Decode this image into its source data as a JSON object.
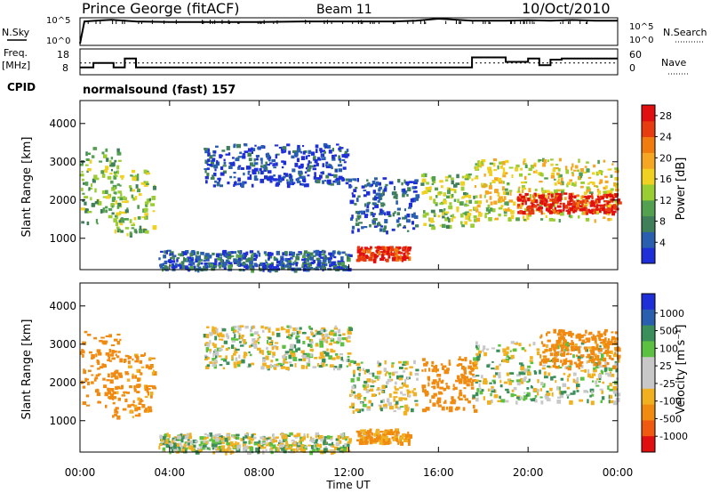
{
  "header": {
    "station": "Prince George (fitACF)",
    "beam": "Beam 11",
    "date": "10/Oct/2010"
  },
  "nsky_panel": {
    "left_label": "N.Sky",
    "right_label": "N.Search",
    "left_ticks": [
      "10^5",
      "10^0"
    ],
    "right_ticks": [
      "10^5",
      "10^0"
    ]
  },
  "freq_panel": {
    "left_label_1": "Freq.",
    "left_label_2": "[MHz]",
    "right_label": "Nave",
    "left_ticks": [
      "18",
      "8"
    ],
    "right_ticks": [
      "60",
      "0"
    ]
  },
  "cpid": {
    "label": "CPID",
    "text": "normalsound (fast) 157"
  },
  "x_axis": {
    "tick_labels": [
      "00:00",
      "04:00",
      "08:00",
      "12:00",
      "16:00",
      "20:00",
      "00:00"
    ],
    "title": "Time UT"
  },
  "colors": {
    "power_scale": [
      "#1f2fd8",
      "#2a5fb0",
      "#3f7f5a",
      "#52a050",
      "#9acd32",
      "#f0d020",
      "#f5a623",
      "#f07c10",
      "#e63c10",
      "#e01010"
    ],
    "velocity_scale": [
      "#1f2fd8",
      "#2a5fb0",
      "#3a8f5a",
      "#5cc040",
      "#c8c8c8",
      "#c8c8c8",
      "#f0b020",
      "#f08a10",
      "#f05a10",
      "#e01010"
    ]
  },
  "chart_data": [
    {
      "type": "line",
      "panel": "N.Sky / N.Search",
      "x": [
        0,
        0.2,
        0.7,
        1.4,
        2.5,
        4,
        6,
        8,
        10,
        12,
        14,
        15,
        16,
        17,
        17.5,
        19,
        20,
        21,
        22,
        23,
        24
      ],
      "series": [
        {
          "name": "N.Sky",
          "values": [
            1,
            40000,
            60000,
            90000,
            40000,
            30000,
            30000,
            30000,
            40000,
            40000,
            40000,
            60000,
            150000,
            80000,
            60000,
            60000,
            70000,
            60000,
            80000,
            60000,
            60000
          ]
        },
        {
          "name": "N.Search",
          "values": [
            1,
            20000,
            30000,
            40000,
            20000,
            15000,
            15000,
            15000,
            20000,
            20000,
            20000,
            30000,
            60000,
            40000,
            30000,
            30000,
            30000,
            30000,
            40000,
            30000,
            30000
          ]
        }
      ],
      "ylim": [
        1,
        100000
      ],
      "log_scale": true
    },
    {
      "type": "line",
      "panel": "Freq. / Nave",
      "x": [
        0,
        0.3,
        0.6,
        0.6,
        1.5,
        1.5,
        2.0,
        2.0,
        2.5,
        2.5,
        17.5,
        17.5,
        19.0,
        19.0,
        20.0,
        20.0,
        20.5,
        20.5,
        21.0,
        21.0,
        21.5,
        21.5,
        24
      ],
      "series": [
        {
          "name": "Freq.",
          "values": [
            10.5,
            10.5,
            10.5,
            12.5,
            12.5,
            10.5,
            10.5,
            14.5,
            14.5,
            10.5,
            10.5,
            15.0,
            15.0,
            13.0,
            13.0,
            14.5,
            14.5,
            11.5,
            11.5,
            14.0,
            14.0,
            14.5,
            14.5
          ]
        },
        {
          "name": "Nave",
          "values": [
            27,
            27,
            27,
            27,
            27,
            27,
            27,
            27,
            27,
            27,
            27,
            27,
            27,
            27,
            27,
            27,
            27,
            27,
            27,
            27,
            27,
            27,
            27
          ]
        }
      ],
      "ylim_left": [
        8,
        18
      ],
      "ylim_right": [
        0,
        60
      ]
    },
    {
      "type": "heatmap",
      "panel": "Power",
      "ylabel": "Slant Range [km]",
      "xlabel": "Time UT",
      "xlim": [
        0,
        24
      ],
      "ylim": [
        180,
        4600
      ],
      "yticks": [
        1000,
        2000,
        3000,
        4000
      ],
      "colorbar": {
        "label": "Power [dB]",
        "ticks": [
          4,
          8,
          12,
          16,
          20,
          24,
          28
        ],
        "range": [
          0,
          30
        ]
      },
      "echo_regions": [
        {
          "t0": 0.0,
          "t1": 1.8,
          "r0": 1400,
          "r1": 3400,
          "level": 11
        },
        {
          "t0": 1.4,
          "t1": 3.3,
          "r0": 1100,
          "r1": 2800,
          "level": 13
        },
        {
          "t0": 5.5,
          "t1": 12.0,
          "r0": 2400,
          "r1": 3500,
          "level": 3
        },
        {
          "t0": 12.0,
          "t1": 15.0,
          "r0": 1200,
          "r1": 2600,
          "level": 4
        },
        {
          "t0": 12.3,
          "t1": 14.7,
          "r0": 450,
          "r1": 800,
          "level": 27
        },
        {
          "t0": 3.5,
          "t1": 12.0,
          "r0": 200,
          "r1": 700,
          "level": 5
        },
        {
          "t0": 15.2,
          "t1": 17.6,
          "r0": 1300,
          "r1": 2700,
          "level": 13
        },
        {
          "t0": 17.5,
          "t1": 24.0,
          "r0": 1500,
          "r1": 3100,
          "level": 16
        },
        {
          "t0": 19.5,
          "t1": 24.0,
          "r0": 1700,
          "r1": 2200,
          "level": 28
        }
      ]
    },
    {
      "type": "heatmap",
      "panel": "Velocity",
      "ylabel": "Slant Range [km]",
      "xlabel": "Time UT",
      "xlim": [
        0,
        24
      ],
      "ylim": [
        180,
        4600
      ],
      "yticks": [
        1000,
        2000,
        3000,
        4000
      ],
      "colorbar": {
        "label": "Velocity [m s^-1]",
        "ticks": [
          1000,
          500,
          100,
          25,
          -25,
          -100,
          -500,
          -1000
        ],
        "range": [
          -1000,
          1000
        ]
      },
      "echo_regions": [
        {
          "t0": 0.0,
          "t1": 1.8,
          "r0": 1400,
          "r1": 3400,
          "level": -200
        },
        {
          "t0": 1.4,
          "t1": 3.3,
          "r0": 1100,
          "r1": 2800,
          "level": -150
        },
        {
          "t0": 5.5,
          "t1": 12.0,
          "r0": 2400,
          "r1": 3500,
          "level": 0
        },
        {
          "t0": 12.0,
          "t1": 15.0,
          "r0": 1200,
          "r1": 2600,
          "level": 0
        },
        {
          "t0": 12.3,
          "t1": 14.7,
          "r0": 450,
          "r1": 800,
          "level": -120
        },
        {
          "t0": 3.5,
          "t1": 12.0,
          "r0": 200,
          "r1": 700,
          "level": 0
        },
        {
          "t0": 15.2,
          "t1": 17.6,
          "r0": 1300,
          "r1": 2700,
          "level": -200
        },
        {
          "t0": 17.5,
          "t1": 24.0,
          "r0": 1500,
          "r1": 3100,
          "level": 0
        },
        {
          "t0": 20.5,
          "t1": 24.0,
          "r0": 2400,
          "r1": 3400,
          "level": -300
        }
      ]
    }
  ]
}
